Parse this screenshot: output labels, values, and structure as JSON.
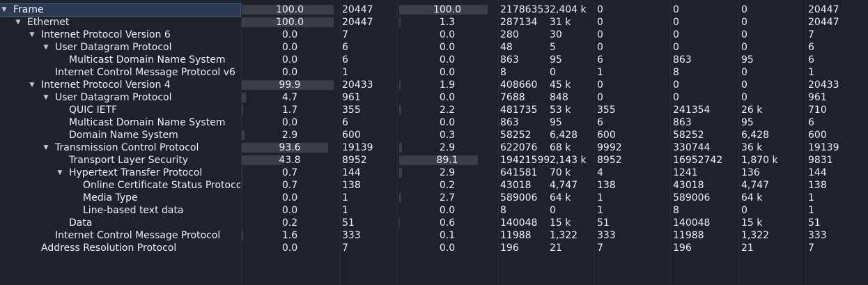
{
  "rows": [
    {
      "name": "Frame",
      "depth": 0,
      "expander": "expanded",
      "selected": true,
      "pct_packets": "100.0",
      "pct_packets_fill": 100.0,
      "packets": "20447",
      "pct_bytes": "100.0",
      "pct_bytes_fill": 100.0,
      "bytes": "21786353",
      "bits_s": "2,404 k",
      "end_packets": "0",
      "end_bytes": "0",
      "end_bits_s": "0",
      "pdus": "20447"
    },
    {
      "name": "Ethernet",
      "depth": 1,
      "expander": "expanded",
      "pct_packets": "100.0",
      "pct_packets_fill": 100.0,
      "packets": "20447",
      "pct_bytes": "1.3",
      "pct_bytes_fill": 1.3,
      "bytes": "287134",
      "bits_s": "31 k",
      "end_packets": "0",
      "end_bytes": "0",
      "end_bits_s": "0",
      "pdus": "20447"
    },
    {
      "name": "Internet Protocol Version 6",
      "depth": 2,
      "expander": "expanded",
      "pct_packets": "0.0",
      "pct_packets_fill": 0.0,
      "packets": "7",
      "pct_bytes": "0.0",
      "pct_bytes_fill": 0.0,
      "bytes": "280",
      "bits_s": "30",
      "end_packets": "0",
      "end_bytes": "0",
      "end_bits_s": "0",
      "pdus": "7"
    },
    {
      "name": "User Datagram Protocol",
      "depth": 3,
      "expander": "expanded",
      "pct_packets": "0.0",
      "pct_packets_fill": 0.0,
      "packets": "6",
      "pct_bytes": "0.0",
      "pct_bytes_fill": 0.0,
      "bytes": "48",
      "bits_s": "5",
      "end_packets": "0",
      "end_bytes": "0",
      "end_bits_s": "0",
      "pdus": "6"
    },
    {
      "name": "Multicast Domain Name System",
      "depth": 4,
      "expander": "none",
      "pct_packets": "0.0",
      "pct_packets_fill": 0.0,
      "packets": "6",
      "pct_bytes": "0.0",
      "pct_bytes_fill": 0.0,
      "bytes": "863",
      "bits_s": "95",
      "end_packets": "6",
      "end_bytes": "863",
      "end_bits_s": "95",
      "pdus": "6"
    },
    {
      "name": "Internet Control Message Protocol v6",
      "depth": 3,
      "expander": "none",
      "pct_packets": "0.0",
      "pct_packets_fill": 0.0,
      "packets": "1",
      "pct_bytes": "0.0",
      "pct_bytes_fill": 0.0,
      "bytes": "8",
      "bits_s": "0",
      "end_packets": "1",
      "end_bytes": "8",
      "end_bits_s": "0",
      "pdus": "1"
    },
    {
      "name": "Internet Protocol Version 4",
      "depth": 2,
      "expander": "expanded",
      "pct_packets": "99.9",
      "pct_packets_fill": 99.9,
      "packets": "20433",
      "pct_bytes": "1.9",
      "pct_bytes_fill": 1.9,
      "bytes": "408660",
      "bits_s": "45 k",
      "end_packets": "0",
      "end_bytes": "0",
      "end_bits_s": "0",
      "pdus": "20433"
    },
    {
      "name": "User Datagram Protocol",
      "depth": 3,
      "expander": "expanded",
      "pct_packets": "4.7",
      "pct_packets_fill": 4.7,
      "packets": "961",
      "pct_bytes": "0.0",
      "pct_bytes_fill": 0.0,
      "bytes": "7688",
      "bits_s": "848",
      "end_packets": "0",
      "end_bytes": "0",
      "end_bits_s": "0",
      "pdus": "961"
    },
    {
      "name": "QUIC IETF",
      "depth": 4,
      "expander": "none",
      "pct_packets": "1.7",
      "pct_packets_fill": 1.7,
      "packets": "355",
      "pct_bytes": "2.2",
      "pct_bytes_fill": 2.2,
      "bytes": "481735",
      "bits_s": "53 k",
      "end_packets": "355",
      "end_bytes": "241354",
      "end_bits_s": "26 k",
      "pdus": "710"
    },
    {
      "name": "Multicast Domain Name System",
      "depth": 4,
      "expander": "none",
      "pct_packets": "0.0",
      "pct_packets_fill": 0.0,
      "packets": "6",
      "pct_bytes": "0.0",
      "pct_bytes_fill": 0.0,
      "bytes": "863",
      "bits_s": "95",
      "end_packets": "6",
      "end_bytes": "863",
      "end_bits_s": "95",
      "pdus": "6"
    },
    {
      "name": "Domain Name System",
      "depth": 4,
      "expander": "none",
      "pct_packets": "2.9",
      "pct_packets_fill": 2.9,
      "packets": "600",
      "pct_bytes": "0.3",
      "pct_bytes_fill": 0.3,
      "bytes": "58252",
      "bits_s": "6,428",
      "end_packets": "600",
      "end_bytes": "58252",
      "end_bits_s": "6,428",
      "pdus": "600"
    },
    {
      "name": "Transmission Control Protocol",
      "depth": 3,
      "expander": "expanded",
      "pct_packets": "93.6",
      "pct_packets_fill": 93.6,
      "packets": "19139",
      "pct_bytes": "2.9",
      "pct_bytes_fill": 2.9,
      "bytes": "622076",
      "bits_s": "68 k",
      "end_packets": "9992",
      "end_bytes": "330744",
      "end_bits_s": "36 k",
      "pdus": "19139"
    },
    {
      "name": "Transport Layer Security",
      "depth": 4,
      "expander": "none",
      "pct_packets": "43.8",
      "pct_packets_fill": 43.8,
      "packets": "8952",
      "pct_bytes": "89.1",
      "pct_bytes_fill": 89.1,
      "bytes": "19421599",
      "bits_s": "2,143 k",
      "end_packets": "8952",
      "end_bytes": "16952742",
      "end_bits_s": "1,870 k",
      "pdus": "9831"
    },
    {
      "name": "Hypertext Transfer Protocol",
      "depth": 4,
      "expander": "expanded",
      "pct_packets": "0.7",
      "pct_packets_fill": 0.7,
      "packets": "144",
      "pct_bytes": "2.9",
      "pct_bytes_fill": 2.9,
      "bytes": "641581",
      "bits_s": "70 k",
      "end_packets": "4",
      "end_bytes": "1241",
      "end_bits_s": "136",
      "pdus": "144"
    },
    {
      "name": "Online Certificate Status Protocol",
      "depth": 5,
      "expander": "none",
      "pct_packets": "0.7",
      "pct_packets_fill": 0.7,
      "packets": "138",
      "pct_bytes": "0.2",
      "pct_bytes_fill": 0.2,
      "bytes": "43018",
      "bits_s": "4,747",
      "end_packets": "138",
      "end_bytes": "43018",
      "end_bits_s": "4,747",
      "pdus": "138"
    },
    {
      "name": "Media Type",
      "depth": 5,
      "expander": "none",
      "pct_packets": "0.0",
      "pct_packets_fill": 0.0,
      "packets": "1",
      "pct_bytes": "2.7",
      "pct_bytes_fill": 2.7,
      "bytes": "589006",
      "bits_s": "64 k",
      "end_packets": "1",
      "end_bytes": "589006",
      "end_bits_s": "64 k",
      "pdus": "1"
    },
    {
      "name": "Line-based text data",
      "depth": 5,
      "expander": "none",
      "pct_packets": "0.0",
      "pct_packets_fill": 0.0,
      "packets": "1",
      "pct_bytes": "0.0",
      "pct_bytes_fill": 0.0,
      "bytes": "8",
      "bits_s": "0",
      "end_packets": "1",
      "end_bytes": "8",
      "end_bits_s": "0",
      "pdus": "1"
    },
    {
      "name": "Data",
      "depth": 4,
      "expander": "none",
      "pct_packets": "0.2",
      "pct_packets_fill": 0.2,
      "packets": "51",
      "pct_bytes": "0.6",
      "pct_bytes_fill": 0.6,
      "bytes": "140048",
      "bits_s": "15 k",
      "end_packets": "51",
      "end_bytes": "140048",
      "end_bits_s": "15 k",
      "pdus": "51"
    },
    {
      "name": "Internet Control Message Protocol",
      "depth": 3,
      "expander": "none",
      "pct_packets": "1.6",
      "pct_packets_fill": 1.6,
      "packets": "333",
      "pct_bytes": "0.1",
      "pct_bytes_fill": 0.1,
      "bytes": "11988",
      "bits_s": "1,322",
      "end_packets": "333",
      "end_bytes": "11988",
      "end_bits_s": "1,322",
      "pdus": "333"
    },
    {
      "name": "Address Resolution Protocol",
      "depth": 2,
      "expander": "none",
      "pct_packets": "0.0",
      "pct_packets_fill": 0.0,
      "packets": "7",
      "pct_bytes": "0.0",
      "pct_bytes_fill": 0.0,
      "bytes": "196",
      "bits_s": "21",
      "end_packets": "7",
      "end_bytes": "196",
      "end_bits_s": "21",
      "pdus": "7"
    }
  ],
  "icons": {
    "expanded": "chevron-down-icon"
  },
  "colors": {
    "background": "#1e222a",
    "text": "#eef0f2",
    "bar": "#3a3e47",
    "selection": "#2b3a52"
  }
}
